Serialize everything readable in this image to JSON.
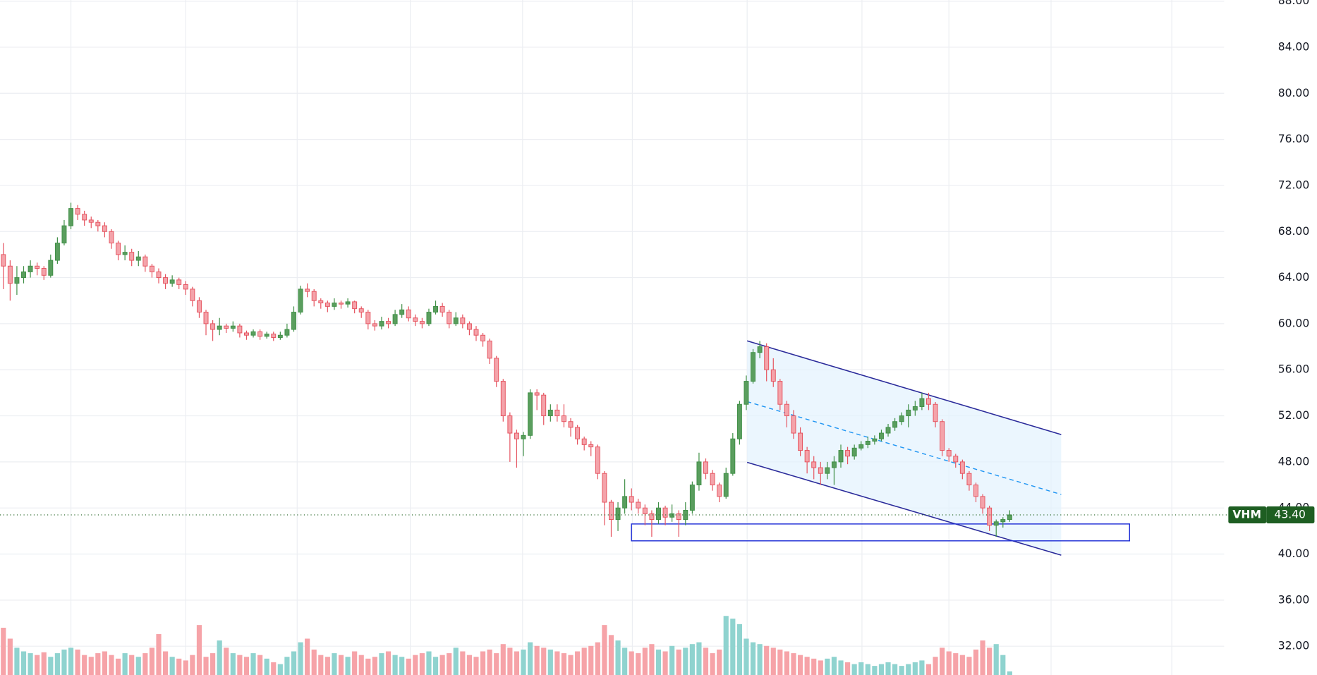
{
  "chart_data": {
    "type": "candlestick",
    "symbol": "VHM",
    "last_price": 43.4,
    "last_price_label": "43.40",
    "up_color": "#3f8f46",
    "down_color": "#e5535f",
    "up_volume_color": "#8fd3cf",
    "down_volume_color": "#f6a3a8",
    "grid": true,
    "ylim": [
      29.5,
      88.1
    ],
    "yticks": [
      {
        "value": 32,
        "label": "32.00"
      },
      {
        "value": 36,
        "label": "36.00"
      },
      {
        "value": 40,
        "label": "40.00"
      },
      {
        "value": 44,
        "label": "44.00"
      },
      {
        "value": 48,
        "label": "48.00"
      },
      {
        "value": 52,
        "label": "52.00"
      },
      {
        "value": 56,
        "label": "56.00"
      },
      {
        "value": 60,
        "label": "60.00"
      },
      {
        "value": 64,
        "label": "64.00"
      },
      {
        "value": 68,
        "label": "68.00"
      },
      {
        "value": 72,
        "label": "72.00"
      },
      {
        "value": 76,
        "label": "76.00"
      },
      {
        "value": 80,
        "label": "80.00"
      },
      {
        "value": 84,
        "label": "84.00"
      },
      {
        "value": 88,
        "label": "88.00"
      }
    ],
    "open": [
      66,
      65,
      63.5,
      64,
      64.5,
      65,
      64.8,
      64.2,
      65.5,
      67,
      68.5,
      70,
      69.5,
      69,
      68.8,
      68.5,
      68,
      67,
      66,
      66.2,
      65.5,
      65.8,
      65,
      64.5,
      64,
      63.5,
      63.8,
      63.4,
      63,
      62,
      61,
      60,
      59.5,
      59.8,
      59.6,
      59.8,
      59.2,
      59,
      59.3,
      58.9,
      59.1,
      58.8,
      59,
      59.5,
      61,
      63,
      62.8,
      62,
      61.8,
      61.5,
      61.8,
      61.7,
      61.9,
      61.3,
      61,
      60,
      59.8,
      60.2,
      60,
      60.8,
      61.2,
      60.5,
      60.2,
      60,
      61,
      61.5,
      61,
      60,
      60.5,
      60,
      59.5,
      59,
      58.5,
      57,
      55,
      52,
      50.5,
      50,
      50.3,
      54,
      53.8,
      52,
      52.5,
      52,
      51.5,
      51,
      50,
      49.5,
      49.3,
      47,
      44.5,
      43,
      44,
      45,
      44.5,
      44,
      43.5,
      43,
      44,
      43.2,
      43.5,
      43,
      43.8,
      46,
      48,
      47,
      46,
      45,
      47,
      50,
      53,
      55,
      57.5,
      58,
      56,
      55,
      53,
      52,
      50.5,
      49,
      48,
      47.5,
      47,
      47.5,
      48,
      49,
      48.5,
      49.2,
      49.5,
      49.8,
      50,
      50.5,
      51,
      51.5,
      52,
      52.5,
      52.8,
      53.5,
      53,
      51.5,
      49,
      48.5,
      48,
      47,
      46,
      45,
      44,
      42.5,
      42.8,
      43
    ],
    "high": [
      67,
      65.5,
      65,
      65,
      65.5,
      65.3,
      65,
      66,
      67.5,
      69,
      70.5,
      70.3,
      69.8,
      69.3,
      69,
      68.8,
      68.2,
      67.2,
      66.8,
      66.5,
      66.3,
      66,
      65.2,
      64.8,
      64.3,
      64.2,
      64,
      63.7,
      63.2,
      62.3,
      61.2,
      60.3,
      60.5,
      60,
      60.2,
      60,
      59.4,
      59.5,
      59.5,
      59.3,
      59.3,
      59.3,
      60,
      61.5,
      63.3,
      63.5,
      63,
      62.2,
      62,
      62.2,
      62,
      62.2,
      62,
      61.5,
      61.2,
      60.3,
      60.6,
      60.5,
      61.2,
      61.7,
      61.5,
      60.8,
      60.5,
      61.3,
      62,
      61.8,
      61.2,
      61,
      60.8,
      60.2,
      59.8,
      59.2,
      58.7,
      57.2,
      55.2,
      52.3,
      50.8,
      50.6,
      54.3,
      54.3,
      54,
      53,
      53,
      53,
      51.8,
      51.2,
      50.2,
      49.8,
      49.5,
      47.2,
      44.7,
      44.5,
      46.5,
      45.7,
      44.8,
      44.3,
      43.8,
      44.5,
      44.2,
      44.3,
      43.8,
      44.5,
      46.3,
      48.8,
      48.3,
      47.3,
      46.2,
      47.5,
      50.5,
      53.3,
      55.5,
      57.8,
      58.5,
      58.3,
      57,
      55.2,
      53.3,
      52.5,
      51,
      49.3,
      48.5,
      48,
      48,
      48.5,
      49.5,
      49.3,
      49.5,
      49.8,
      50.2,
      50.3,
      50.8,
      51.3,
      51.8,
      52.3,
      53,
      53.3,
      54,
      54,
      53.2,
      51.7,
      49.2,
      48.7,
      48.2,
      47.2,
      46.2,
      45.2,
      44.2,
      43,
      43.2,
      43.8
    ],
    "low": [
      63,
      62,
      62.5,
      63.5,
      64,
      64.2,
      63.8,
      64,
      65.2,
      66.8,
      68.2,
      69,
      68.5,
      68.3,
      68,
      67.5,
      66.5,
      65.5,
      65.5,
      65,
      65,
      64.5,
      64,
      63.5,
      63,
      63.2,
      63,
      62.5,
      61.5,
      60.5,
      59,
      58.5,
      59,
      59.2,
      59.3,
      58.8,
      58.6,
      58.8,
      58.6,
      58.7,
      58.5,
      58.6,
      58.8,
      59.3,
      60.8,
      62.3,
      61.5,
      61.3,
      61,
      61.2,
      61.3,
      61.4,
      60.9,
      60.5,
      59.5,
      59.4,
      59.5,
      59.6,
      59.8,
      60.5,
      60.2,
      59.8,
      59.6,
      59.8,
      60.8,
      60.6,
      59.6,
      59.8,
      59.6,
      59,
      58.5,
      58,
      56.5,
      54.5,
      51.5,
      48,
      47.5,
      48.5,
      50,
      52.5,
      51.2,
      51.5,
      51.5,
      51,
      50.2,
      49.5,
      49,
      48.5,
      46.5,
      42.5,
      41.5,
      42,
      43.5,
      43.8,
      43.5,
      42.5,
      41.5,
      42.6,
      42.5,
      42.8,
      41.5,
      42.5,
      43.5,
      45.5,
      46.5,
      45.5,
      44.5,
      44.8,
      46.8,
      49.5,
      52.5,
      54.8,
      57,
      55,
      54.5,
      52.5,
      51,
      50,
      48.5,
      47,
      46.5,
      46,
      46.5,
      46,
      47.5,
      47.8,
      48.2,
      49,
      49.2,
      49.5,
      49.8,
      50.2,
      50.7,
      51.2,
      51,
      52,
      52.5,
      52.5,
      51,
      48.5,
      48,
      47.5,
      46.5,
      45.5,
      44.5,
      43.5,
      42,
      41.5,
      42.3,
      42.8
    ],
    "close": [
      65,
      63.5,
      64,
      64.5,
      65,
      64.8,
      64.2,
      65.5,
      67,
      68.5,
      70,
      69.5,
      69,
      68.8,
      68.5,
      68,
      67,
      66,
      66.2,
      65.5,
      65.8,
      65,
      64.5,
      64,
      63.5,
      63.8,
      63.4,
      63,
      62,
      61,
      60,
      59.5,
      59.8,
      59.6,
      59.8,
      59.2,
      59,
      59.3,
      58.9,
      59.1,
      58.8,
      59,
      59.5,
      61,
      63,
      62.8,
      62,
      61.8,
      61.5,
      61.8,
      61.7,
      61.9,
      61.3,
      61,
      60,
      59.8,
      60.2,
      60,
      60.8,
      61.2,
      60.5,
      60.2,
      60,
      61,
      61.5,
      61,
      60,
      60.5,
      60,
      59.5,
      59,
      58.5,
      57,
      55,
      52,
      50.5,
      50,
      50.3,
      54,
      53.8,
      52,
      52.5,
      52,
      51.5,
      51,
      50,
      49.5,
      49.3,
      47,
      44.5,
      43,
      44,
      45,
      44.5,
      44,
      43.5,
      43,
      44,
      43.2,
      43.5,
      43,
      43.8,
      46,
      48,
      47,
      46,
      45,
      47,
      50,
      53,
      55,
      57.5,
      58,
      56,
      55,
      53,
      52,
      50.5,
      49,
      48,
      47.5,
      47,
      47.5,
      48,
      49,
      48.5,
      49.2,
      49.5,
      49.8,
      50,
      50.5,
      51,
      51.5,
      52,
      52.5,
      52.8,
      53.5,
      53,
      51.5,
      49,
      48.5,
      48,
      47,
      46,
      45,
      44,
      42.5,
      42.8,
      43,
      43.4
    ],
    "volume": [
      52,
      40,
      30,
      26,
      24,
      22,
      25,
      20,
      24,
      28,
      30,
      28,
      22,
      20,
      24,
      26,
      22,
      18,
      24,
      22,
      20,
      24,
      30,
      45,
      26,
      20,
      18,
      16,
      22,
      55,
      20,
      24,
      38,
      30,
      24,
      22,
      20,
      24,
      22,
      18,
      14,
      12,
      20,
      26,
      36,
      40,
      28,
      22,
      20,
      24,
      22,
      20,
      26,
      22,
      18,
      20,
      24,
      26,
      22,
      20,
      18,
      22,
      24,
      26,
      20,
      22,
      24,
      30,
      26,
      22,
      20,
      26,
      28,
      24,
      34,
      30,
      26,
      28,
      36,
      32,
      30,
      28,
      26,
      24,
      22,
      26,
      30,
      32,
      36,
      55,
      44,
      38,
      30,
      26,
      24,
      30,
      34,
      28,
      26,
      32,
      28,
      30,
      34,
      36,
      30,
      24,
      28,
      65,
      62,
      56,
      40,
      36,
      34,
      32,
      30,
      28,
      26,
      24,
      22,
      20,
      18,
      16,
      18,
      20,
      16,
      14,
      12,
      14,
      12,
      10,
      12,
      14,
      12,
      10,
      12,
      14,
      16,
      12,
      20,
      30,
      26,
      24,
      22,
      20,
      28,
      38,
      30,
      34,
      22,
      4
    ]
  }
}
